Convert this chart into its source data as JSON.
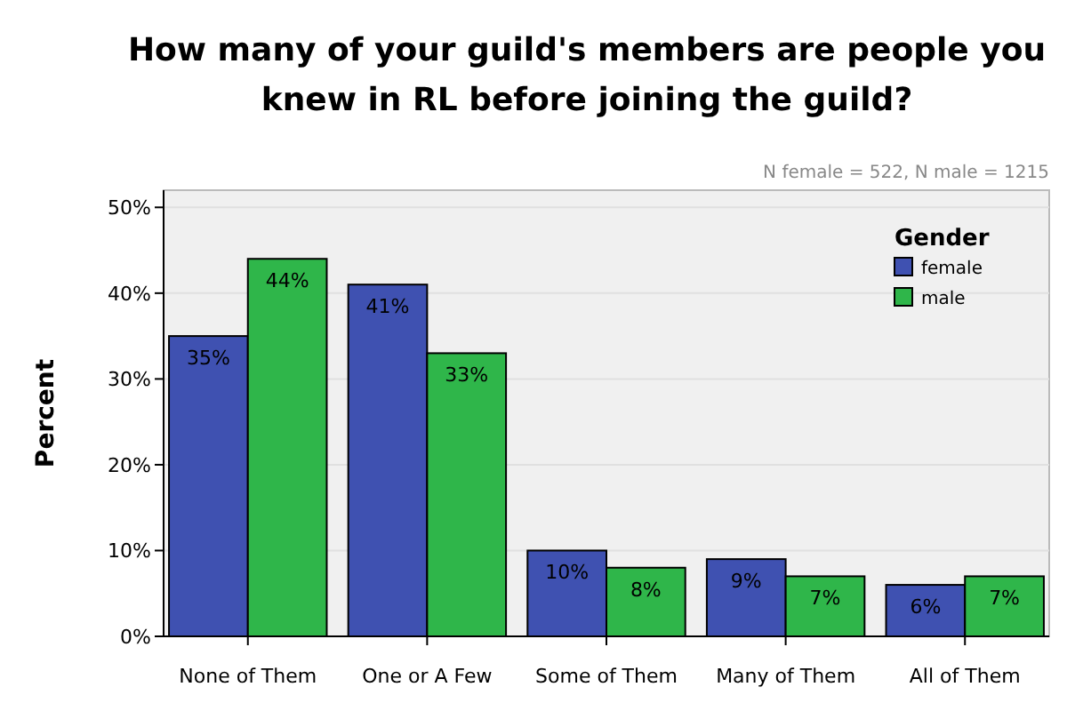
{
  "chart_data": {
    "type": "bar",
    "title": "How many of your guild's members are people you knew in RL before joining the guild?",
    "ylabel": "Percent",
    "legend_title": "Gender",
    "annotations": [
      "N female = 522, N male = 1215"
    ],
    "categories": [
      "None of Them",
      "One or A Few",
      "Some of Them",
      "Many of Them",
      "All of Them"
    ],
    "series": [
      {
        "name": "female",
        "color": "#3f51b1",
        "values": [
          35,
          41,
          10,
          9,
          6
        ],
        "value_labels": [
          "35%",
          "41%",
          "10%",
          "9%",
          "6%"
        ]
      },
      {
        "name": "male",
        "color": "#2fb64a",
        "values": [
          44,
          33,
          8,
          7,
          7
        ],
        "value_labels": [
          "44%",
          "33%",
          "8%",
          "7%",
          "7%"
        ]
      }
    ],
    "ylim": [
      0,
      52
    ],
    "yticks": [
      {
        "value": 0,
        "label": "0%"
      },
      {
        "value": 10,
        "label": "10%"
      },
      {
        "value": 20,
        "label": "20%"
      },
      {
        "value": 30,
        "label": "30%"
      },
      {
        "value": 40,
        "label": "40%"
      },
      {
        "value": 50,
        "label": "50%"
      }
    ],
    "grid": "y",
    "legend": "top right"
  }
}
